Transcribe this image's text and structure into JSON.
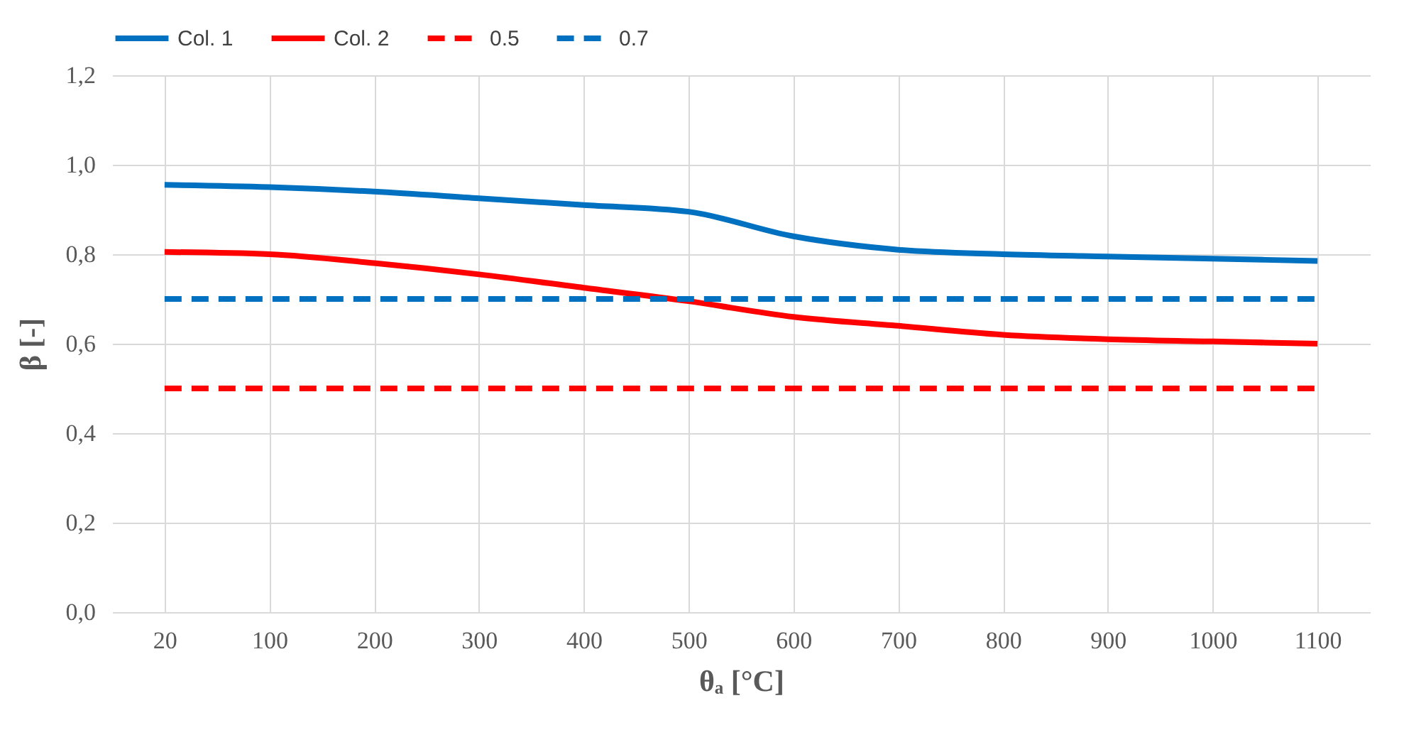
{
  "chart_data": {
    "type": "line",
    "xlabel": "θₐ [°C]",
    "ylabel": "β [-]",
    "categories": [
      "20",
      "100",
      "200",
      "300",
      "400",
      "500",
      "600",
      "700",
      "800",
      "900",
      "1000",
      "1100"
    ],
    "series": [
      {
        "name": "Col. 1",
        "color": "#0070c0",
        "line_style": "solid",
        "values": [
          0.955,
          0.95,
          0.94,
          0.925,
          0.91,
          0.895,
          0.84,
          0.81,
          0.8,
          0.795,
          0.79,
          0.785
        ]
      },
      {
        "name": "Col. 2",
        "color": "#ff0000",
        "line_style": "solid",
        "values": [
          0.805,
          0.8,
          0.78,
          0.755,
          0.725,
          0.695,
          0.66,
          0.64,
          0.62,
          0.61,
          0.605,
          0.6
        ]
      },
      {
        "name": "0.5",
        "color": "#ff0000",
        "line_style": "dashed",
        "values": [
          0.5,
          0.5,
          0.5,
          0.5,
          0.5,
          0.5,
          0.5,
          0.5,
          0.5,
          0.5,
          0.5,
          0.5
        ]
      },
      {
        "name": "0.7",
        "color": "#0070c0",
        "line_style": "dashed",
        "values": [
          0.7,
          0.7,
          0.7,
          0.7,
          0.7,
          0.7,
          0.7,
          0.7,
          0.7,
          0.7,
          0.7,
          0.7
        ]
      }
    ],
    "ylim": [
      0,
      1.2
    ],
    "yticks": [
      {
        "value": 0,
        "label": "0,0"
      },
      {
        "value": 0.2,
        "label": "0,2"
      },
      {
        "value": 0.4,
        "label": "0,4"
      },
      {
        "value": 0.6,
        "label": "0,6"
      },
      {
        "value": 0.8,
        "label": "0,8"
      },
      {
        "value": 1,
        "label": "1,0"
      },
      {
        "value": 1.2,
        "label": "1,2"
      }
    ],
    "grid": true,
    "legend": "top",
    "marker": "none"
  }
}
